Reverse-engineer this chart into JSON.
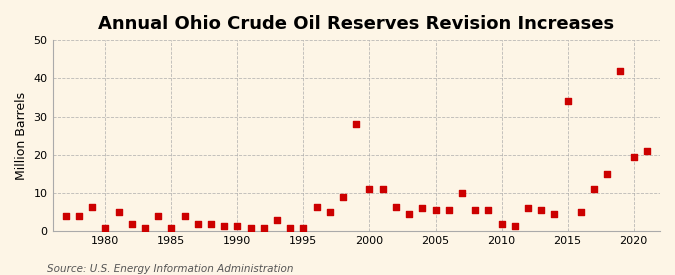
{
  "title": "Annual Ohio Crude Oil Reserves Revision Increases",
  "ylabel": "Million Barrels",
  "source": "Source: U.S. Energy Information Administration",
  "years": [
    1977,
    1978,
    1979,
    1980,
    1981,
    1982,
    1983,
    1984,
    1985,
    1986,
    1987,
    1988,
    1989,
    1990,
    1991,
    1992,
    1993,
    1994,
    1995,
    1996,
    1997,
    1998,
    1999,
    2000,
    2001,
    2002,
    2003,
    2004,
    2005,
    2006,
    2007,
    2008,
    2009,
    2010,
    2011,
    2012,
    2013,
    2014,
    2015,
    2016,
    2017,
    2018,
    2019,
    2020,
    2021
  ],
  "values": [
    4.0,
    4.0,
    6.5,
    1.0,
    5.0,
    2.0,
    1.0,
    4.0,
    1.0,
    4.0,
    2.0,
    2.0,
    1.5,
    1.5,
    1.0,
    1.0,
    3.0,
    1.0,
    1.0,
    6.5,
    5.0,
    9.0,
    28.0,
    11.0,
    11.0,
    6.5,
    4.5,
    6.0,
    5.5,
    5.5,
    10.0,
    5.5,
    5.5,
    2.0,
    1.5,
    6.0,
    5.5,
    4.5,
    34.0,
    5.0,
    11.0,
    15.0,
    42.0,
    19.5,
    21.0
  ],
  "marker_color": "#cc0000",
  "marker_size": 16,
  "background_color": "#fdf5e6",
  "grid_color": "#aaaaaa",
  "ylim": [
    0,
    50
  ],
  "xlim": [
    1976,
    2022
  ],
  "yticks": [
    0,
    10,
    20,
    30,
    40,
    50
  ],
  "xticks": [
    1980,
    1985,
    1990,
    1995,
    2000,
    2005,
    2010,
    2015,
    2020
  ],
  "title_fontsize": 13,
  "label_fontsize": 9,
  "tick_fontsize": 8,
  "source_fontsize": 7.5
}
